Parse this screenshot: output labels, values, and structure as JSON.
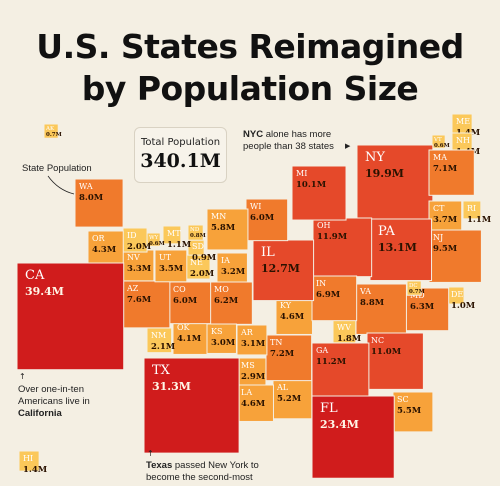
{
  "title_lines": [
    "U.S. States Reimagined",
    "by Population Size"
  ],
  "total": {
    "label": "Total Population",
    "value": "340.1M"
  },
  "notes": {
    "state_population": "State Population",
    "nyc_bold": "NYC",
    "nyc_rest": " alone has more people than 38 states",
    "ca_pre": "Over one-in-ten Americans live in ",
    "ca_bold": "California",
    "tx_bold": "Texas",
    "tx_rest": " passed New York to become the second-most"
  },
  "icons": {
    "arrow_right": "arrow-right-icon",
    "arrow_up": "arrow-up-icon"
  },
  "colors": {
    "background": "#f4efe3",
    "scale": [
      "#fbc85a",
      "#f7a23a",
      "#f07a2c",
      "#e5492a",
      "#d01c1c"
    ]
  },
  "chart_data": {
    "type": "treemap",
    "title": "U.S. States Reimagined by Population Size",
    "unit": "M",
    "states": [
      {
        "abbr": "AK",
        "value": 0.7
      },
      {
        "abbr": "ME",
        "value": 1.4
      },
      {
        "abbr": "NH",
        "value": 1.4
      },
      {
        "abbr": "VT",
        "value": 0.6
      },
      {
        "abbr": "NY",
        "value": 19.9
      },
      {
        "abbr": "MA",
        "value": 7.1
      },
      {
        "abbr": "CT",
        "value": 3.7
      },
      {
        "abbr": "RI",
        "value": 1.1
      },
      {
        "abbr": "NJ",
        "value": 9.5
      },
      {
        "abbr": "PA",
        "value": 13.1
      },
      {
        "abbr": "DE",
        "value": 1.0
      },
      {
        "abbr": "MD",
        "value": 6.3
      },
      {
        "abbr": "DC",
        "value": 0.7
      },
      {
        "abbr": "VA",
        "value": 8.8
      },
      {
        "abbr": "WV",
        "value": 1.8
      },
      {
        "abbr": "NC",
        "value": 11.0
      },
      {
        "abbr": "SC",
        "value": 5.5
      },
      {
        "abbr": "GA",
        "value": 11.2
      },
      {
        "abbr": "FL",
        "value": 23.4
      },
      {
        "abbr": "AL",
        "value": 5.2
      },
      {
        "abbr": "MS",
        "value": 2.9
      },
      {
        "abbr": "TN",
        "value": 7.2
      },
      {
        "abbr": "KY",
        "value": 4.6
      },
      {
        "abbr": "OH",
        "value": 11.9
      },
      {
        "abbr": "MI",
        "value": 10.1
      },
      {
        "abbr": "IN",
        "value": 6.9
      },
      {
        "abbr": "IL",
        "value": 12.7
      },
      {
        "abbr": "WI",
        "value": 6.0
      },
      {
        "abbr": "MN",
        "value": 5.8
      },
      {
        "abbr": "IA",
        "value": 3.2
      },
      {
        "abbr": "MO",
        "value": 6.2
      },
      {
        "abbr": "AR",
        "value": 3.1
      },
      {
        "abbr": "LA",
        "value": 4.6
      },
      {
        "abbr": "TX",
        "value": 31.3
      },
      {
        "abbr": "OK",
        "value": 4.1
      },
      {
        "abbr": "KS",
        "value": 3.0
      },
      {
        "abbr": "NE",
        "value": 2.0
      },
      {
        "abbr": "SD",
        "value": 0.9
      },
      {
        "abbr": "ND",
        "value": 0.8
      },
      {
        "abbr": "MT",
        "value": 1.1
      },
      {
        "abbr": "WY",
        "value": 0.6
      },
      {
        "abbr": "CO",
        "value": 6.0
      },
      {
        "abbr": "NM",
        "value": 2.1
      },
      {
        "abbr": "AZ",
        "value": 7.6
      },
      {
        "abbr": "UT",
        "value": 3.5
      },
      {
        "abbr": "NV",
        "value": 3.3
      },
      {
        "abbr": "ID",
        "value": 2.0
      },
      {
        "abbr": "OR",
        "value": 4.3
      },
      {
        "abbr": "WA",
        "value": 8.0
      },
      {
        "abbr": "CA",
        "value": 39.4
      },
      {
        "abbr": "HI",
        "value": 1.4
      }
    ]
  }
}
